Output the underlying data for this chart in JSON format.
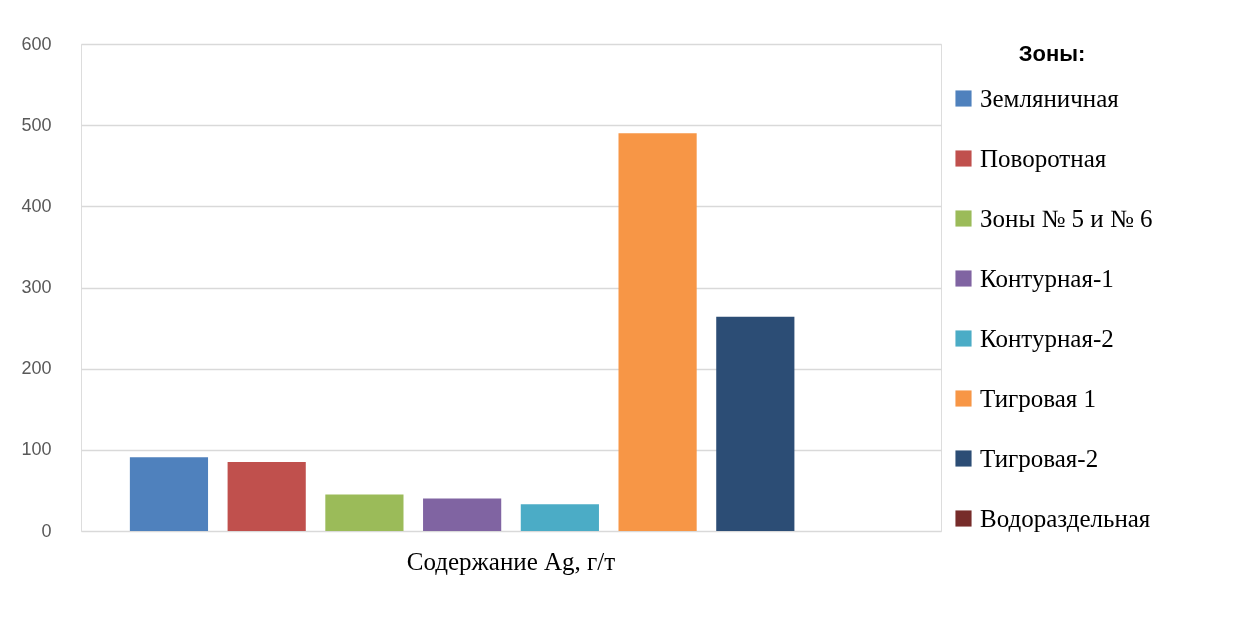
{
  "chart_data": {
    "type": "bar",
    "categories": [
      "Содержание Ag, г/т"
    ],
    "legend_title": "Зоны:",
    "series": [
      {
        "name": "Земляничная",
        "color": "#4f81bd",
        "values": [
          91
        ]
      },
      {
        "name": "Поворотная",
        "color": "#c0504d",
        "values": [
          85
        ]
      },
      {
        "name": "Зоны № 5 и № 6",
        "color": "#9bbb59",
        "values": [
          45
        ]
      },
      {
        "name": "Контурная-1",
        "color": "#8064a2",
        "values": [
          40
        ]
      },
      {
        "name": "Контурная-2",
        "color": "#4bacc6",
        "values": [
          33
        ]
      },
      {
        "name": "Тигровая 1",
        "color": "#f79646",
        "values": [
          490
        ]
      },
      {
        "name": "Тигровая-2",
        "color": "#2c4d75",
        "values": [
          264
        ]
      },
      {
        "name": "Водораздельная",
        "color": "#772c2a",
        "values": [
          0
        ]
      }
    ],
    "ylim": [
      0,
      600
    ],
    "yticks": [
      0,
      100,
      200,
      300,
      400,
      500,
      600
    ],
    "grid": "y",
    "legend": "right"
  }
}
